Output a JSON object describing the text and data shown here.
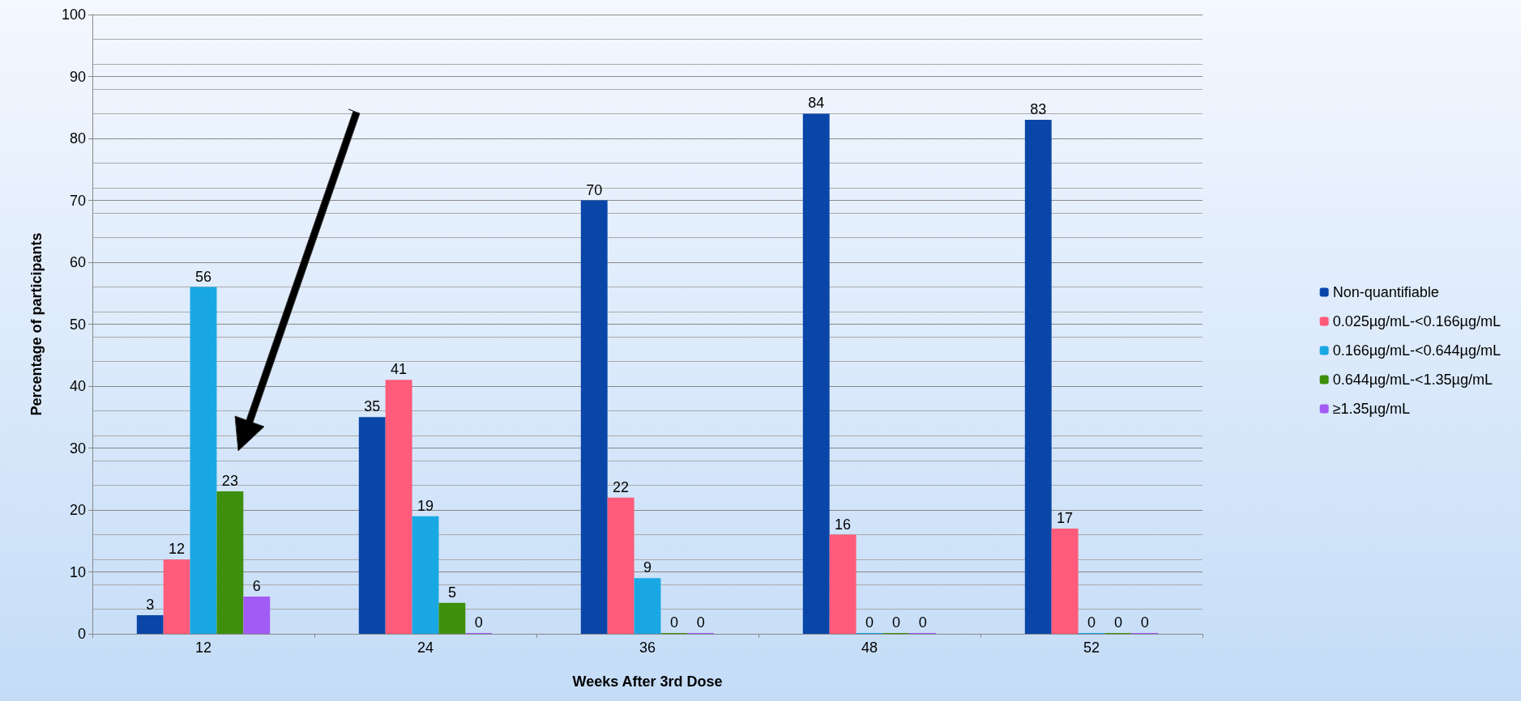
{
  "chart_data": {
    "type": "bar",
    "xlabel": "Weeks After 3rd Dose",
    "ylabel": "Percentage of participants",
    "categories": [
      "12",
      "24",
      "36",
      "48",
      "52"
    ],
    "series": [
      {
        "name": "Non-quantifiable",
        "color": "#0a46a8",
        "values": [
          3,
          35,
          70,
          84,
          83
        ]
      },
      {
        "name": "0.025µg/mL-<0.166µg/mL",
        "color": "#ff5b7a",
        "values": [
          12,
          41,
          22,
          16,
          17
        ]
      },
      {
        "name": "0.166µg/mL-<0.644µg/mL",
        "color": "#19a8e3",
        "values": [
          56,
          19,
          9,
          0,
          0
        ]
      },
      {
        "name": "0.644µg/mL-<1.35µg/mL",
        "color": "#3e8f0c",
        "values": [
          23,
          5,
          0,
          0,
          0
        ]
      },
      {
        "name": "≥1.35µg/mL",
        "color": "#a35bf5",
        "values": [
          6,
          0,
          0,
          0,
          0
        ]
      }
    ],
    "ylim": [
      0,
      100
    ],
    "yticks": [
      0,
      10,
      20,
      30,
      40,
      50,
      60,
      70,
      80,
      90,
      100
    ],
    "grid": "y",
    "legend": "right",
    "data_labels": true
  }
}
